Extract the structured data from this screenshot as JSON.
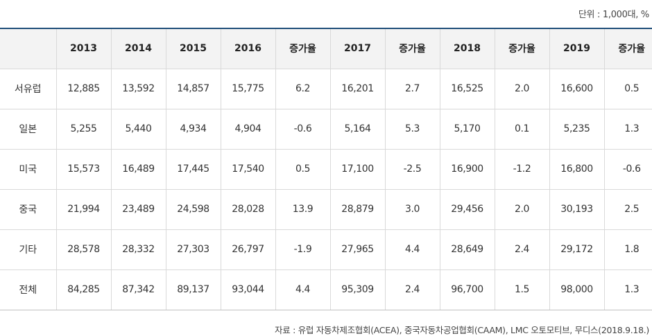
{
  "unit_note": "단위 : 1,000대, %",
  "columns": [
    "",
    "2013",
    "2014",
    "2015",
    "2016",
    "증가율",
    "2017",
    "증가율",
    "2018",
    "증가율",
    "2019",
    "증가율"
  ],
  "rows": [
    {
      "region": "서유럽",
      "values": [
        "12,885",
        "13,592",
        "14,857",
        "15,775",
        "6.2",
        "16,201",
        "2.7",
        "16,525",
        "2.0",
        "16,600",
        "0.5"
      ]
    },
    {
      "region": "일본",
      "values": [
        "5,255",
        "5,440",
        "4,934",
        "4,904",
        "-0.6",
        "5,164",
        "5.3",
        "5,170",
        "0.1",
        "5,235",
        "1.3"
      ]
    },
    {
      "region": "미국",
      "values": [
        "15,573",
        "16,489",
        "17,445",
        "17,540",
        "0.5",
        "17,100",
        "-2.5",
        "16,900",
        "-1.2",
        "16,800",
        "-0.6"
      ]
    },
    {
      "region": "중국",
      "values": [
        "21,994",
        "23,489",
        "24,598",
        "28,028",
        "13.9",
        "28,879",
        "3.0",
        "29,456",
        "2.0",
        "30,193",
        "2.5"
      ]
    },
    {
      "region": "기타",
      "values": [
        "28,578",
        "28,332",
        "27,303",
        "26,797",
        "-1.9",
        "27,965",
        "4.4",
        "28,649",
        "2.4",
        "29,172",
        "1.8"
      ]
    },
    {
      "region": "전체",
      "values": [
        "84,285",
        "87,342",
        "89,137",
        "93,044",
        "4.4",
        "95,309",
        "2.4",
        "96,700",
        "1.5",
        "98,000",
        "1.3"
      ]
    }
  ],
  "source_note": "자료 : 유럽 자동차제조협회(ACEA), 중국자동차공업협회(CAAM), LMC 오토모티브, 무디스(2018.9.18.)",
  "colors": {
    "header_bg": "#f3f3f3",
    "top_rule": "#1f4e79",
    "grid": "#d9d9d9"
  }
}
